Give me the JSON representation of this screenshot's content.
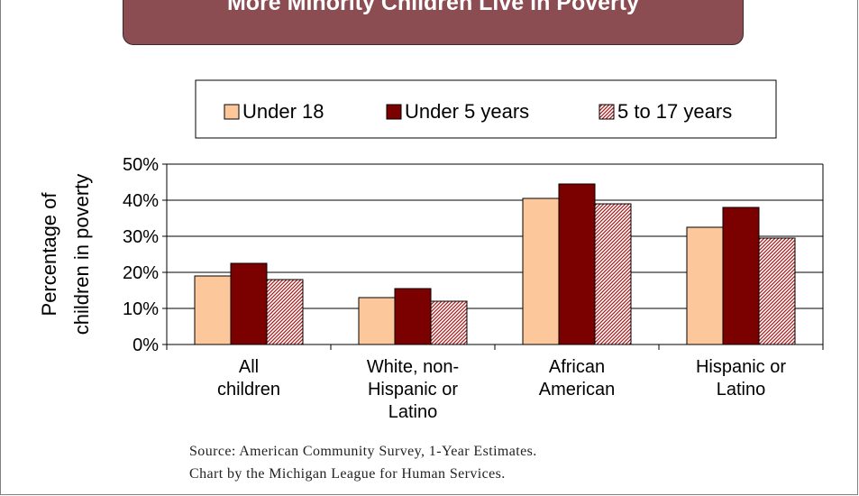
{
  "chart_data": {
    "type": "bar",
    "title": "More Minority Children Live in Poverty",
    "ylabel": [
      "Percentage of",
      "children in poverty"
    ],
    "xlabel": "",
    "categories": [
      [
        "All",
        "children"
      ],
      [
        "White, non-",
        "Hispanic or",
        "Latino"
      ],
      [
        "African",
        "American"
      ],
      [
        "Hispanic or",
        "Latino"
      ]
    ],
    "series": [
      {
        "name": "Under 18",
        "values": [
          19,
          13,
          40.5,
          32.5
        ],
        "color": "#fcc79a",
        "pattern": "solid"
      },
      {
        "name": "Under 5 years",
        "values": [
          22.5,
          15.5,
          44.5,
          38
        ],
        "color": "#7b0000",
        "pattern": "solid"
      },
      {
        "name": "5 to 17 years",
        "values": [
          18,
          12,
          39,
          29.5
        ],
        "color": "#a32020",
        "pattern": "diagonal-hatch"
      }
    ],
    "ylim": [
      0,
      50
    ],
    "yticks": [
      "0%",
      "10%",
      "20%",
      "30%",
      "40%",
      "50%"
    ],
    "grid": true,
    "legend_position": "top"
  },
  "source": {
    "line1": "Source:  American Community Survey, 1-Year Estimates.",
    "line2": "Chart by the Michigan League for Human Services."
  }
}
